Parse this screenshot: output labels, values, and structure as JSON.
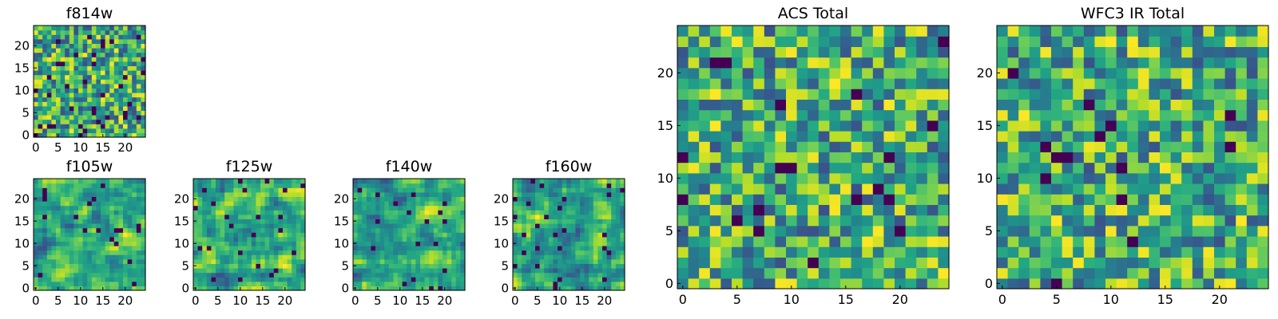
{
  "chart_data": [
    {
      "id": "f814w",
      "type": "heatmap",
      "title": "f814w",
      "rows": 25,
      "cols": 25,
      "xlim": [
        0,
        24
      ],
      "ylim": [
        0,
        24
      ],
      "xticks": [
        0,
        5,
        10,
        15,
        20
      ],
      "yticks": [
        0,
        5,
        10,
        15,
        20
      ],
      "colormap": "viridis",
      "seed": 814,
      "smooth": 0,
      "darkness": 0.05
    },
    {
      "id": "f105w",
      "type": "heatmap",
      "title": "f105w",
      "rows": 25,
      "cols": 25,
      "xlim": [
        0,
        24
      ],
      "ylim": [
        0,
        24
      ],
      "xticks": [
        0,
        5,
        10,
        15,
        20
      ],
      "yticks": [
        0,
        5,
        10,
        15,
        20
      ],
      "colormap": "viridis",
      "seed": 105,
      "smooth": 1,
      "darkness": 0.03
    },
    {
      "id": "f125w",
      "type": "heatmap",
      "title": "f125w",
      "rows": 25,
      "cols": 25,
      "xlim": [
        0,
        24
      ],
      "ylim": [
        0,
        24
      ],
      "xticks": [
        0,
        5,
        10,
        15,
        20
      ],
      "yticks": [
        0,
        5,
        10,
        15,
        20
      ],
      "colormap": "viridis",
      "seed": 125,
      "smooth": 1,
      "darkness": 0.03
    },
    {
      "id": "f140w",
      "type": "heatmap",
      "title": "f140w",
      "rows": 25,
      "cols": 25,
      "xlim": [
        0,
        24
      ],
      "ylim": [
        0,
        24
      ],
      "xticks": [
        0,
        5,
        10,
        15,
        20
      ],
      "yticks": [
        0,
        5,
        10,
        15,
        20
      ],
      "colormap": "viridis",
      "seed": 140,
      "smooth": 1,
      "darkness": 0.03
    },
    {
      "id": "f160w",
      "type": "heatmap",
      "title": "f160w",
      "rows": 25,
      "cols": 25,
      "xlim": [
        0,
        24
      ],
      "ylim": [
        0,
        24
      ],
      "xticks": [
        0,
        5,
        10,
        15,
        20
      ],
      "yticks": [
        0,
        5,
        10,
        15,
        20
      ],
      "colormap": "viridis",
      "seed": 160,
      "smooth": 1,
      "darkness": 0.04
    },
    {
      "id": "acs-total",
      "type": "heatmap",
      "title": "ACS Total",
      "rows": 25,
      "cols": 25,
      "xlim": [
        0,
        24
      ],
      "ylim": [
        0,
        24
      ],
      "xticks": [
        0,
        5,
        10,
        15,
        20
      ],
      "yticks": [
        0,
        5,
        10,
        15,
        20
      ],
      "colormap": "viridis",
      "seed": 7,
      "smooth": 0,
      "darkness": 0.025
    },
    {
      "id": "wfc3-ir-total",
      "type": "heatmap",
      "title": "WFC3 IR Total",
      "rows": 25,
      "cols": 25,
      "xlim": [
        0,
        24
      ],
      "ylim": [
        0,
        24
      ],
      "xticks": [
        0,
        5,
        10,
        15,
        20
      ],
      "yticks": [
        0,
        5,
        10,
        15,
        20
      ],
      "colormap": "viridis",
      "seed": 31,
      "smooth": 0,
      "darkness": 0.02
    }
  ]
}
